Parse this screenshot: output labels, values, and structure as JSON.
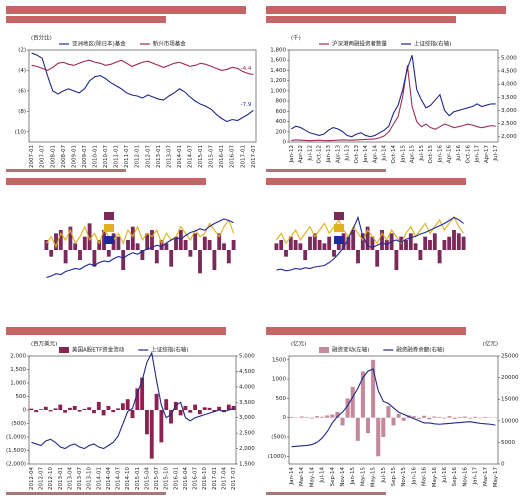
{
  "chart_data": [
    {
      "type": "line",
      "frame": true,
      "legend": "top",
      "y_label": "(百分比)",
      "label_last": true,
      "ylim": [
        -11,
        -2
      ],
      "yticks": [
        {
          "value": -2,
          "label": "(2)"
        },
        {
          "value": -4,
          "label": "(4)"
        },
        {
          "value": -6,
          "label": "(6)"
        },
        {
          "value": -8,
          "label": "(8)"
        },
        {
          "value": -10,
          "label": "(10)"
        }
      ],
      "categories": [
        "2007-01",
        null,
        "2007-07",
        null,
        "2008-01",
        null,
        "2008-07",
        null,
        "2009-01",
        null,
        "2009-07",
        null,
        "2010-01",
        null,
        "2010-07",
        null,
        "2011-01",
        null,
        "2011-07",
        null,
        "2012-01",
        null,
        "2012-07",
        null,
        "2013-01",
        null,
        "2013-07",
        null,
        "2014-01",
        null,
        "2014-07",
        null,
        "2015-01",
        null,
        "2015-07",
        null,
        "2016-01",
        null,
        "2016-07",
        null,
        "2017-01",
        null,
        "2017-07"
      ],
      "series": [
        {
          "name": "亚洲地区(除日本)基金",
          "color": "#1f2a8a",
          "type": "line",
          "values": [
            -2.3,
            -2.5,
            -2.8,
            -4.5,
            -6.0,
            -6.3,
            -6.0,
            -5.8,
            -6.0,
            -6.2,
            -5.8,
            -5.0,
            -4.6,
            -4.5,
            -4.8,
            -5.2,
            -5.5,
            -5.8,
            -6.2,
            -6.4,
            -6.5,
            -6.7,
            -6.4,
            -6.6,
            -6.8,
            -6.9,
            -6.5,
            -6.2,
            -5.8,
            -6.1,
            -6.6,
            -7.0,
            -7.3,
            -7.5,
            -7.8,
            -8.3,
            -8.7,
            -9.0,
            -8.8,
            -8.9,
            -8.6,
            -8.3,
            -7.9
          ]
        },
        {
          "name": "新兴市场基金",
          "color": "#9b2c4a",
          "type": "line",
          "values": [
            -3.5,
            -3.6,
            -3.8,
            -4.0,
            -3.7,
            -3.3,
            -3.2,
            -3.4,
            -3.5,
            -3.3,
            -3.1,
            -3.0,
            -3.2,
            -3.3,
            -3.5,
            -3.4,
            -3.2,
            -3.0,
            -3.3,
            -3.6,
            -3.4,
            -3.2,
            -3.1,
            -3.3,
            -3.5,
            -3.7,
            -3.5,
            -3.3,
            -3.2,
            -3.4,
            -3.6,
            -3.5,
            -3.3,
            -3.4,
            -3.6,
            -3.8,
            -4.0,
            -3.9,
            -3.7,
            -3.8,
            -4.1,
            -4.3,
            -4.4
          ]
        }
      ]
    },
    {
      "type": "combo",
      "frame": true,
      "legend": "top",
      "y_label": "(千)",
      "ylim": [
        0,
        1800
      ],
      "yticks": [
        0,
        200,
        400,
        600,
        800,
        {
          "value": 1000,
          "label": "1,000"
        },
        {
          "value": 1200,
          "label": "1,200"
        },
        {
          "value": 1400,
          "label": "1,400"
        },
        {
          "value": 1600,
          "label": "1,600"
        },
        {
          "value": 1800,
          "label": "1,800"
        }
      ],
      "y2lim": [
        1800,
        5300
      ],
      "y2ticks": [
        {
          "value": 2000,
          "label": "2,000"
        },
        {
          "value": 2500,
          "label": "2,500"
        },
        {
          "value": 3000,
          "label": "3,000"
        },
        {
          "value": 3500,
          "label": "3,500"
        },
        {
          "value": 4000,
          "label": "4,000"
        },
        {
          "value": 4500,
          "label": "4,500"
        },
        {
          "value": 5000,
          "label": "5,000"
        }
      ],
      "categories": [
        "Jan-12",
        null,
        "Apr-12",
        null,
        "Jul-12",
        null,
        "Oct-12",
        null,
        "Jan-13",
        null,
        "Apr-13",
        null,
        "Jul-13",
        null,
        "Oct-13",
        null,
        "Jan-14",
        null,
        "Apr-14",
        null,
        "Jul-14",
        null,
        "Oct-14",
        null,
        "Jan-15",
        null,
        "Apr-15",
        null,
        "Jul-15",
        null,
        "Oct-15",
        null,
        "Jan-16",
        null,
        "Apr-16",
        null,
        "Jul-16",
        null,
        "Oct-16",
        null,
        "Jan-17",
        null,
        "Apr-17",
        null,
        "Jul-17"
      ],
      "series": [
        {
          "name": "沪深港两融投资者数量",
          "color": "#a0304f",
          "type": "line",
          "values": [
            30,
            40,
            35,
            30,
            25,
            30,
            35,
            28,
            25,
            30,
            35,
            40,
            38,
            35,
            40,
            45,
            50,
            55,
            60,
            80,
            120,
            200,
            350,
            500,
            900,
            1500,
            700,
            400,
            300,
            350,
            280,
            250,
            300,
            350,
            320,
            280,
            300,
            320,
            350,
            330,
            300,
            280,
            300,
            320,
            310
          ]
        },
        {
          "name": "上证综指(右轴)",
          "color": "#1f2a8a",
          "type": "line",
          "axis": "y2",
          "values": [
            2300,
            2400,
            2350,
            2250,
            2150,
            2100,
            2050,
            2100,
            2250,
            2350,
            2300,
            2200,
            2050,
            2000,
            2100,
            2150,
            2050,
            2000,
            2050,
            2150,
            2250,
            2400,
            2900,
            3200,
            3800,
            4600,
            5100,
            3800,
            3400,
            3100,
            3200,
            3400,
            3600,
            3000,
            2800,
            2950,
            3000,
            3050,
            3100,
            3150,
            3250,
            3150,
            3200,
            3250,
            3250
          ]
        }
      ]
    },
    {
      "type": "combo",
      "frame": false,
      "legend": "left",
      "ylim": [
        -1.5,
        1.2
      ],
      "y2lim": [
        -2,
        10
      ],
      "series": [
        {
          "color": "#7a2a5a",
          "type": "bar",
          "values": [
            0.3,
            -0.2,
            0.5,
            0.6,
            -0.4,
            0.7,
            0.2,
            -0.3,
            0.4,
            0.8,
            -0.5,
            0.3,
            0.6,
            -0.2,
            0.5,
            0.4,
            -0.6,
            0.3,
            0.7,
            0.2,
            -0.3,
            0.5,
            0.6,
            -0.4,
            0.3,
            0.2,
            -0.5,
            0.4,
            0.6,
            0.3,
            -0.2,
            0.5,
            -0.7,
            0.4,
            0.3,
            -0.6,
            0.5,
            0.2,
            -0.4,
            0.3
          ]
        },
        {
          "color": "#e0b020",
          "type": "line",
          "values": [
            0.2,
            0.4,
            0.1,
            0.5,
            0.3,
            0.6,
            0.2,
            0.4,
            0.7,
            0.3,
            0.5,
            0.2,
            0.6,
            0.4,
            0.3,
            0.5,
            0.2,
            0.6,
            0.4,
            0.7,
            0.3,
            0.5,
            0.4,
            0.6,
            0.2,
            0.5,
            0.3,
            0.4,
            0.7,
            0.5,
            0.3,
            0.6,
            0.4,
            0.5,
            0.8,
            0.6,
            0.4,
            0.7,
            0.9,
            0.5
          ]
        },
        {
          "color": "#1e2a9a",
          "type": "line",
          "axis": "y2",
          "values": [
            1,
            1.2,
            1.5,
            1.4,
            1.8,
            2,
            2.2,
            2.1,
            2.5,
            2.8,
            2.6,
            3,
            3.2,
            3.1,
            3.5,
            3.8,
            3.6,
            4,
            4.3,
            4.1,
            4.5,
            4.8,
            5,
            5.3,
            5.1,
            5.6,
            6,
            6.3,
            6.1,
            6.6,
            7,
            7.2,
            7.5,
            7.3,
            7.8,
            8.2,
            8.5,
            8.8,
            8.6,
            8.3
          ]
        }
      ]
    },
    {
      "type": "combo",
      "frame": false,
      "legend": "left",
      "ylim": [
        -1.5,
        1.2
      ],
      "y2lim": [
        -2,
        10
      ],
      "series": [
        {
          "color": "#7a2a5a",
          "type": "bar",
          "values": [
            0.2,
            0.3,
            -0.2,
            0.4,
            0.3,
            0.2,
            -0.3,
            0.4,
            0.5,
            0.3,
            0.2,
            0.4,
            -0.2,
            0.3,
            0.5,
            0.4,
            0.6,
            -0.4,
            0.5,
            0.7,
            0.4,
            -0.5,
            0.6,
            0.3,
            0.5,
            -0.6,
            0.4,
            0.3,
            0.5,
            0.2,
            -0.3,
            0.4,
            0.3,
            0.5,
            -0.4,
            0.3,
            0.4,
            0.6,
            0.5,
            0.4
          ]
        },
        {
          "color": "#e0b020",
          "type": "line",
          "values": [
            0.3,
            0.5,
            0.2,
            0.4,
            0.6,
            0.3,
            0.5,
            0.7,
            0.4,
            0.6,
            0.8,
            0.5,
            0.7,
            0.9,
            0.6,
            0.4,
            0.7,
            0.5,
            0.3,
            0.6,
            0.4,
            0.2,
            0.5,
            0.3,
            0.6,
            0.4,
            0.2,
            0.5,
            0.7,
            0.4,
            0.6,
            0.8,
            0.5,
            0.7,
            0.9,
            0.6,
            0.8,
            1.0,
            0.7,
            0.5
          ]
        },
        {
          "color": "#1e2a9a",
          "type": "line",
          "axis": "y2",
          "values": [
            2,
            2.1,
            1.9,
            2,
            2.2,
            2.1,
            2.3,
            2.2,
            2.4,
            2.5,
            2.6,
            3,
            3.5,
            4.2,
            5,
            6.2,
            7.5,
            9,
            6.5,
            5.2,
            5,
            5.3,
            5.6,
            5.4,
            5.8,
            6,
            5.7,
            6.1,
            6.3,
            6.5,
            6.8,
            7,
            7.3,
            7.6,
            7.9,
            8.2,
            8.6,
            9,
            8.7,
            8.2
          ]
        }
      ]
    },
    {
      "type": "combo",
      "frame": true,
      "legend": "top",
      "y_label": "(百万美元)",
      "ylim": [
        -2000,
        2000
      ],
      "yticks": [
        {
          "value": 2000,
          "label": "2,000"
        },
        {
          "value": 1500,
          "label": "1,500"
        },
        {
          "value": 1000,
          "label": "1,000"
        },
        500,
        0,
        {
          "value": -500,
          "label": "(500)"
        },
        {
          "value": -1000,
          "label": "(1,000)"
        },
        {
          "value": -1500,
          "label": "(1,500)"
        },
        {
          "value": -2000,
          "label": "(2,000)"
        }
      ],
      "y2lim": [
        1500,
        5000
      ],
      "y2ticks": [
        {
          "value": 1500,
          "label": "1,500"
        },
        {
          "value": 2000,
          "label": "2,000"
        },
        {
          "value": 2500,
          "label": "2,500"
        },
        {
          "value": 3000,
          "label": "3,000"
        },
        {
          "value": 3500,
          "label": "3,500"
        },
        {
          "value": 4000,
          "label": "4,000"
        },
        {
          "value": 4500,
          "label": "4,500"
        },
        {
          "value": 5000,
          "label": "5,000"
        }
      ],
      "categories": [
        "2012-04",
        null,
        "2012-07",
        null,
        "2012-10",
        null,
        "2013-01",
        null,
        "2013-04",
        null,
        "2013-07",
        null,
        "2013-10",
        null,
        "2014-01",
        null,
        "2014-04",
        null,
        "2014-07",
        null,
        "2014-10",
        null,
        "2015-01",
        null,
        "2015-04",
        null,
        "2015-07",
        null,
        "2015-10",
        null,
        "2016-01",
        null,
        "2016-04",
        null,
        "2016-07",
        null,
        "2016-10",
        null,
        "2017-01",
        null,
        "2017-04",
        null,
        "2017-07"
      ],
      "series": [
        {
          "name": "美国A股ETF资金流动",
          "color": "#8b2252",
          "type": "bar",
          "values": [
            50,
            -80,
            30,
            120,
            -50,
            60,
            200,
            -100,
            80,
            150,
            -60,
            40,
            100,
            -120,
            300,
            -200,
            150,
            -80,
            60,
            250,
            400,
            -300,
            800,
            1200,
            -900,
            -1800,
            600,
            -1200,
            400,
            -500,
            300,
            -200,
            150,
            -100,
            200,
            -150,
            100,
            80,
            -60,
            120,
            -80,
            200,
            150
          ]
        },
        {
          "name": "上证综指(右轴)",
          "color": "#1f2a8a",
          "type": "line",
          "axis": "y2",
          "values": [
            2200,
            2150,
            2100,
            2250,
            2300,
            2200,
            2050,
            2000,
            2100,
            2150,
            2050,
            2000,
            2100,
            2150,
            2050,
            2000,
            2100,
            2200,
            2400,
            2800,
            3200,
            3300,
            3800,
            4200,
            4800,
            5100,
            4200,
            3400,
            3000,
            3100,
            3400,
            3500,
            3000,
            2900,
            3000,
            3050,
            3100,
            3150,
            3200,
            3250,
            3200,
            3250,
            3300
          ]
        }
      ]
    },
    {
      "type": "combo",
      "frame": true,
      "legend": "top",
      "y_label": "(亿元)",
      "y2_label": "(亿元)",
      "ylim": [
        -1200,
        1600
      ],
      "yticks": [
        1500,
        1000,
        500,
        0,
        {
          "value": -500,
          "label": "(500)"
        },
        {
          "value": -1000,
          "label": "(1000)"
        }
      ],
      "y2lim": [
        0,
        25000
      ],
      "y2ticks": [
        0,
        5000,
        10000,
        15000,
        20000,
        25000
      ],
      "categories": [
        "Jan-14",
        null,
        "Mar-14",
        null,
        "May-14",
        null,
        "Jul-14",
        null,
        "Sep-14",
        null,
        "Nov-14",
        null,
        "Jan-15",
        null,
        "Mar-15",
        null,
        "May-15",
        null,
        "Jul-15",
        null,
        "Sep-15",
        null,
        "Nov-15",
        null,
        "Jan-16",
        null,
        "Mar-16",
        null,
        "May-16",
        null,
        "Jul-16",
        null,
        "Sep-16",
        null,
        "Nov-16",
        null,
        "Jan-17",
        null,
        "Mar-17",
        null,
        "May-17"
      ],
      "series": [
        {
          "name": "融资变动(左轴)",
          "color": "#c48a9c",
          "type": "bar",
          "values": [
            20,
            -10,
            30,
            15,
            -20,
            40,
            25,
            60,
            80,
            150,
            -200,
            500,
            800,
            -600,
            1200,
            -400,
            1500,
            -1000,
            -500,
            300,
            -200,
            100,
            -80,
            60,
            40,
            -30,
            50,
            -40,
            30,
            20,
            -20,
            40,
            -30,
            20,
            30,
            -20,
            25,
            -15,
            20,
            10,
            -10
          ]
        },
        {
          "name": "融资融券余额(右轴)",
          "color": "#1f2a8a",
          "type": "line",
          "axis": "y2",
          "values": [
            4000,
            4100,
            4200,
            4300,
            4500,
            5000,
            6000,
            7500,
            9500,
            11000,
            12000,
            13500,
            15500,
            17500,
            20000,
            21500,
            22000,
            17000,
            14500,
            14000,
            13000,
            12000,
            11500,
            11000,
            10500,
            10000,
            9500,
            9500,
            9300,
            9200,
            9300,
            9400,
            9500,
            9600,
            9700,
            9800,
            9600,
            9400,
            9300,
            9200,
            9000
          ]
        }
      ]
    }
  ]
}
